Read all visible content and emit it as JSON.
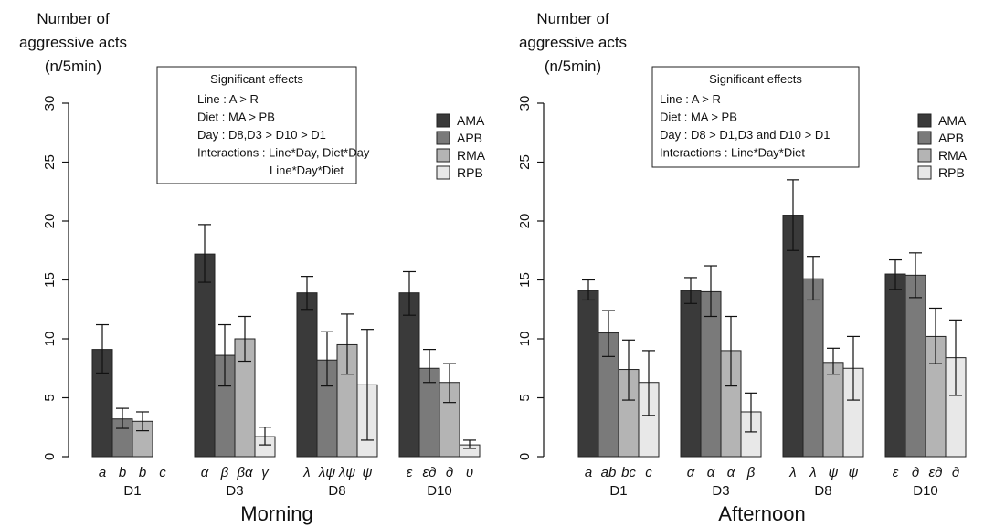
{
  "chart_data": [
    {
      "type": "bar",
      "title": "Morning",
      "ylabel_lines": [
        "Number of",
        "aggressive acts",
        "(n/5min)"
      ],
      "ylim": [
        0,
        30
      ],
      "yticks": [
        0,
        5,
        10,
        15,
        20,
        25,
        30
      ],
      "categories": [
        "D1",
        "D3",
        "D8",
        "D10"
      ],
      "series": [
        {
          "name": "AMA",
          "color": "#3a3a3a",
          "values": [
            9.1,
            17.2,
            13.9,
            13.9
          ],
          "err_low": [
            7.1,
            14.8,
            12.5,
            12.0
          ],
          "err_high": [
            11.2,
            19.7,
            15.3,
            15.7
          ],
          "letters": [
            "a",
            "α",
            "λ",
            "ε"
          ]
        },
        {
          "name": "APB",
          "color": "#7a7a7a",
          "values": [
            3.2,
            8.6,
            8.2,
            7.5
          ],
          "err_low": [
            2.4,
            6.0,
            6.0,
            6.3
          ],
          "err_high": [
            4.1,
            11.2,
            10.6,
            9.1
          ],
          "letters": [
            "b",
            "β",
            "λψ",
            "εд"
          ]
        },
        {
          "name": "RMA",
          "color": "#b4b4b4",
          "values": [
            3.0,
            10.0,
            9.5,
            6.3
          ],
          "err_low": [
            2.2,
            8.1,
            7.0,
            4.6
          ],
          "err_high": [
            3.8,
            11.9,
            12.1,
            7.9
          ],
          "letters": [
            "b",
            "βα",
            "λψ",
            "д"
          ]
        },
        {
          "name": "RPB",
          "color": "#e8e8e8",
          "values": [
            0,
            1.7,
            6.1,
            1.0
          ],
          "err_low": [
            0,
            1.0,
            1.4,
            0.7
          ],
          "err_high": [
            0,
            2.5,
            10.8,
            1.4
          ],
          "letters": [
            "c",
            "γ",
            "ψ",
            "υ"
          ]
        }
      ],
      "legend_position": "top-right",
      "annotation": {
        "title": "Significant effects",
        "lines": [
          "Line : A > R",
          "Diet : MA > PB",
          "Day : D8,D3 > D10 > D1",
          "Interactions :   Line*Day, Diet*Day",
          "Line*Day*Diet"
        ]
      }
    },
    {
      "type": "bar",
      "title": "Afternoon",
      "ylabel_lines": [
        "Number of",
        "aggressive acts",
        "(n/5min)"
      ],
      "ylim": [
        0,
        30
      ],
      "yticks": [
        0,
        5,
        10,
        15,
        20,
        25,
        30
      ],
      "categories": [
        "D1",
        "D3",
        "D8",
        "D10"
      ],
      "series": [
        {
          "name": "AMA",
          "color": "#3a3a3a",
          "values": [
            14.1,
            14.1,
            20.5,
            15.5
          ],
          "err_low": [
            13.3,
            13.0,
            17.5,
            14.2
          ],
          "err_high": [
            15.0,
            15.2,
            23.5,
            16.7
          ],
          "letters": [
            "a",
            "α",
            "λ",
            "ε"
          ]
        },
        {
          "name": "APB",
          "color": "#7a7a7a",
          "values": [
            10.5,
            14.0,
            15.1,
            15.4
          ],
          "err_low": [
            8.5,
            11.9,
            13.3,
            13.5
          ],
          "err_high": [
            12.4,
            16.2,
            17.0,
            17.3
          ],
          "letters": [
            "ab",
            "α",
            "λ",
            "д"
          ]
        },
        {
          "name": "RMA",
          "color": "#b4b4b4",
          "values": [
            7.4,
            9.0,
            8.0,
            10.2
          ],
          "err_low": [
            4.8,
            6.0,
            7.0,
            7.9
          ],
          "err_high": [
            9.9,
            11.9,
            9.2,
            12.6
          ],
          "letters": [
            "bc",
            "α",
            "ψ",
            "εд"
          ]
        },
        {
          "name": "RPB",
          "color": "#e8e8e8",
          "values": [
            6.3,
            3.8,
            7.5,
            8.4
          ],
          "err_low": [
            3.5,
            2.1,
            4.8,
            5.2
          ],
          "err_high": [
            9.0,
            5.4,
            10.2,
            11.6
          ],
          "letters": [
            "c",
            "β",
            "ψ",
            "д"
          ]
        }
      ],
      "legend_position": "top-right",
      "annotation": {
        "title": "Significant effects",
        "lines": [
          "Line : A  > R",
          "Diet : MA > PB",
          "Day : D8 > D1,D3 and D10 > D1",
          "Interactions :   Line*Day*Diet"
        ]
      }
    }
  ]
}
